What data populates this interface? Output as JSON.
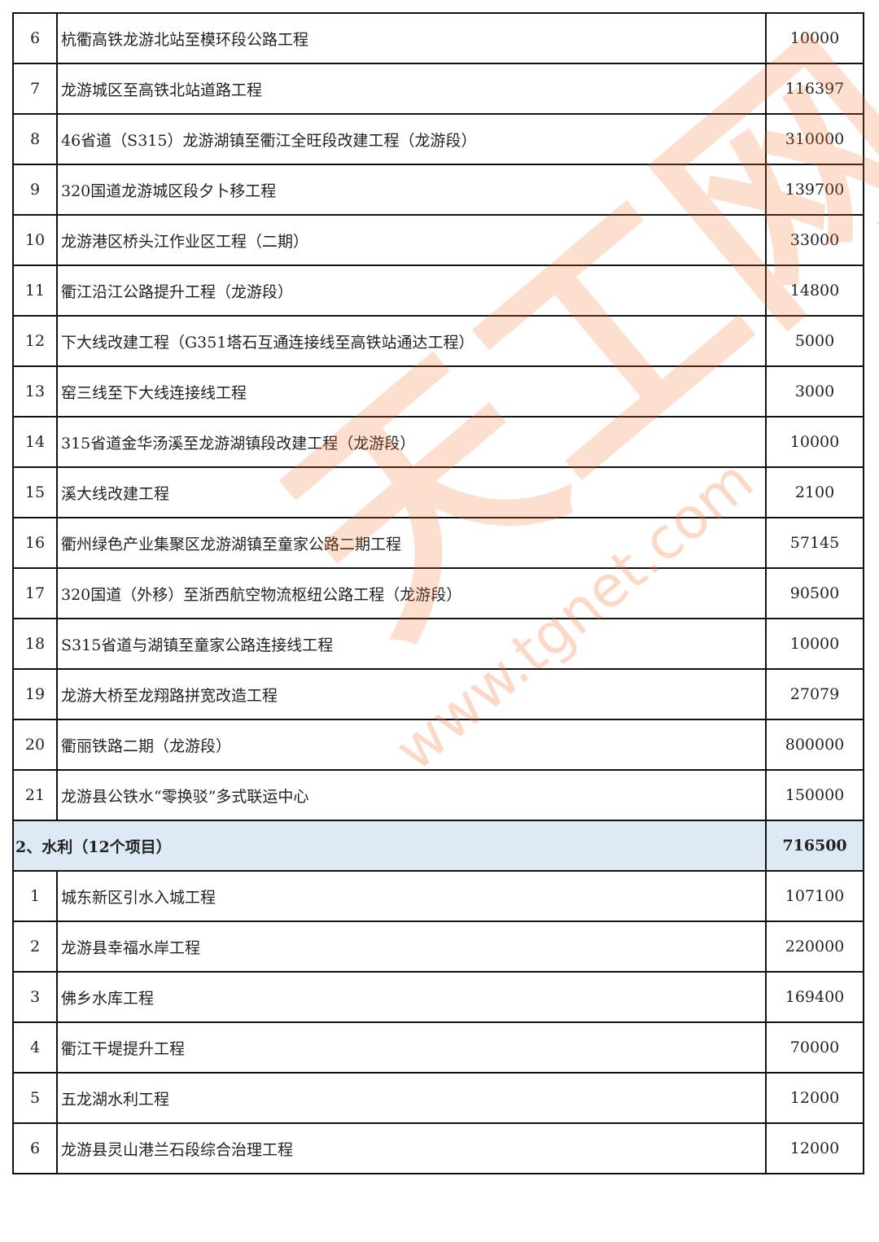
{
  "transport_rows": [
    {
      "no": "6",
      "name": "杭衢高铁龙游北站至模环段公路工程",
      "amount": "10000"
    },
    {
      "no": "7",
      "name": "龙游城区至高铁北站道路工程",
      "amount": "116397"
    },
    {
      "no": "8",
      "name": "46省道（S315）龙游湖镇至衢江全旺段改建工程（龙游段）",
      "amount": "310000"
    },
    {
      "no": "9",
      "name": "320国道龙游城区段夕卜移工程",
      "amount": "139700"
    },
    {
      "no": "10",
      "name": "龙游港区桥头江作业区工程（二期）",
      "amount": "33000"
    },
    {
      "no": "11",
      "name": "衢江沿江公路提升工程（龙游段）",
      "amount": "14800"
    },
    {
      "no": "12",
      "name": "下大线改建工程（G351塔石互通连接线至高铁站通达工程）",
      "amount": "5000"
    },
    {
      "no": "13",
      "name": "窑三线至下大线连接线工程",
      "amount": "3000"
    },
    {
      "no": "14",
      "name": "315省道金华汤溪至龙游湖镇段改建工程（龙游段）",
      "amount": "10000"
    },
    {
      "no": "15",
      "name": "溪大线改建工程",
      "amount": "2100"
    },
    {
      "no": "16",
      "name": "衢州绿色产业集聚区龙游湖镇至童家公路二期工程",
      "amount": "57145"
    },
    {
      "no": "17",
      "name": "320国道（外移）至浙西航空物流枢纽公路工程（龙游段）",
      "amount": "90500"
    },
    {
      "no": "18",
      "name": "S315省道与湖镇至童家公路连接线工程",
      "amount": "10000"
    },
    {
      "no": "19",
      "name": "龙游大桥至龙翔路拼宽改造工程",
      "amount": "27079"
    },
    {
      "no": "20",
      "name": "衢丽铁路二期（龙游段）",
      "amount": "800000"
    },
    {
      "no": "21",
      "name": "龙游县公铁水“零换驳”多式联运中心",
      "amount": "150000"
    }
  ],
  "section": {
    "title": "2、水利（12个项目）",
    "amount": "716500",
    "color": "#dde9f5"
  },
  "water_rows": [
    {
      "no": "1",
      "name": "城东新区引水入城工程",
      "amount": "107100"
    },
    {
      "no": "2",
      "name": "龙游县幸福水岸工程",
      "amount": "220000"
    },
    {
      "no": "3",
      "name": "佛乡水库工程",
      "amount": "169400"
    },
    {
      "no": "4",
      "name": "衢江干堤提升工程",
      "amount": "70000"
    },
    {
      "no": "5",
      "name": "五龙湖水利工程",
      "amount": "12000"
    },
    {
      "no": "6",
      "name": "龙游县灵山港兰石段综合治理工程",
      "amount": "12000"
    }
  ],
  "watermark": {
    "logo": "天工网",
    "url": "www.tgnet.com",
    "color": "#f57832"
  }
}
